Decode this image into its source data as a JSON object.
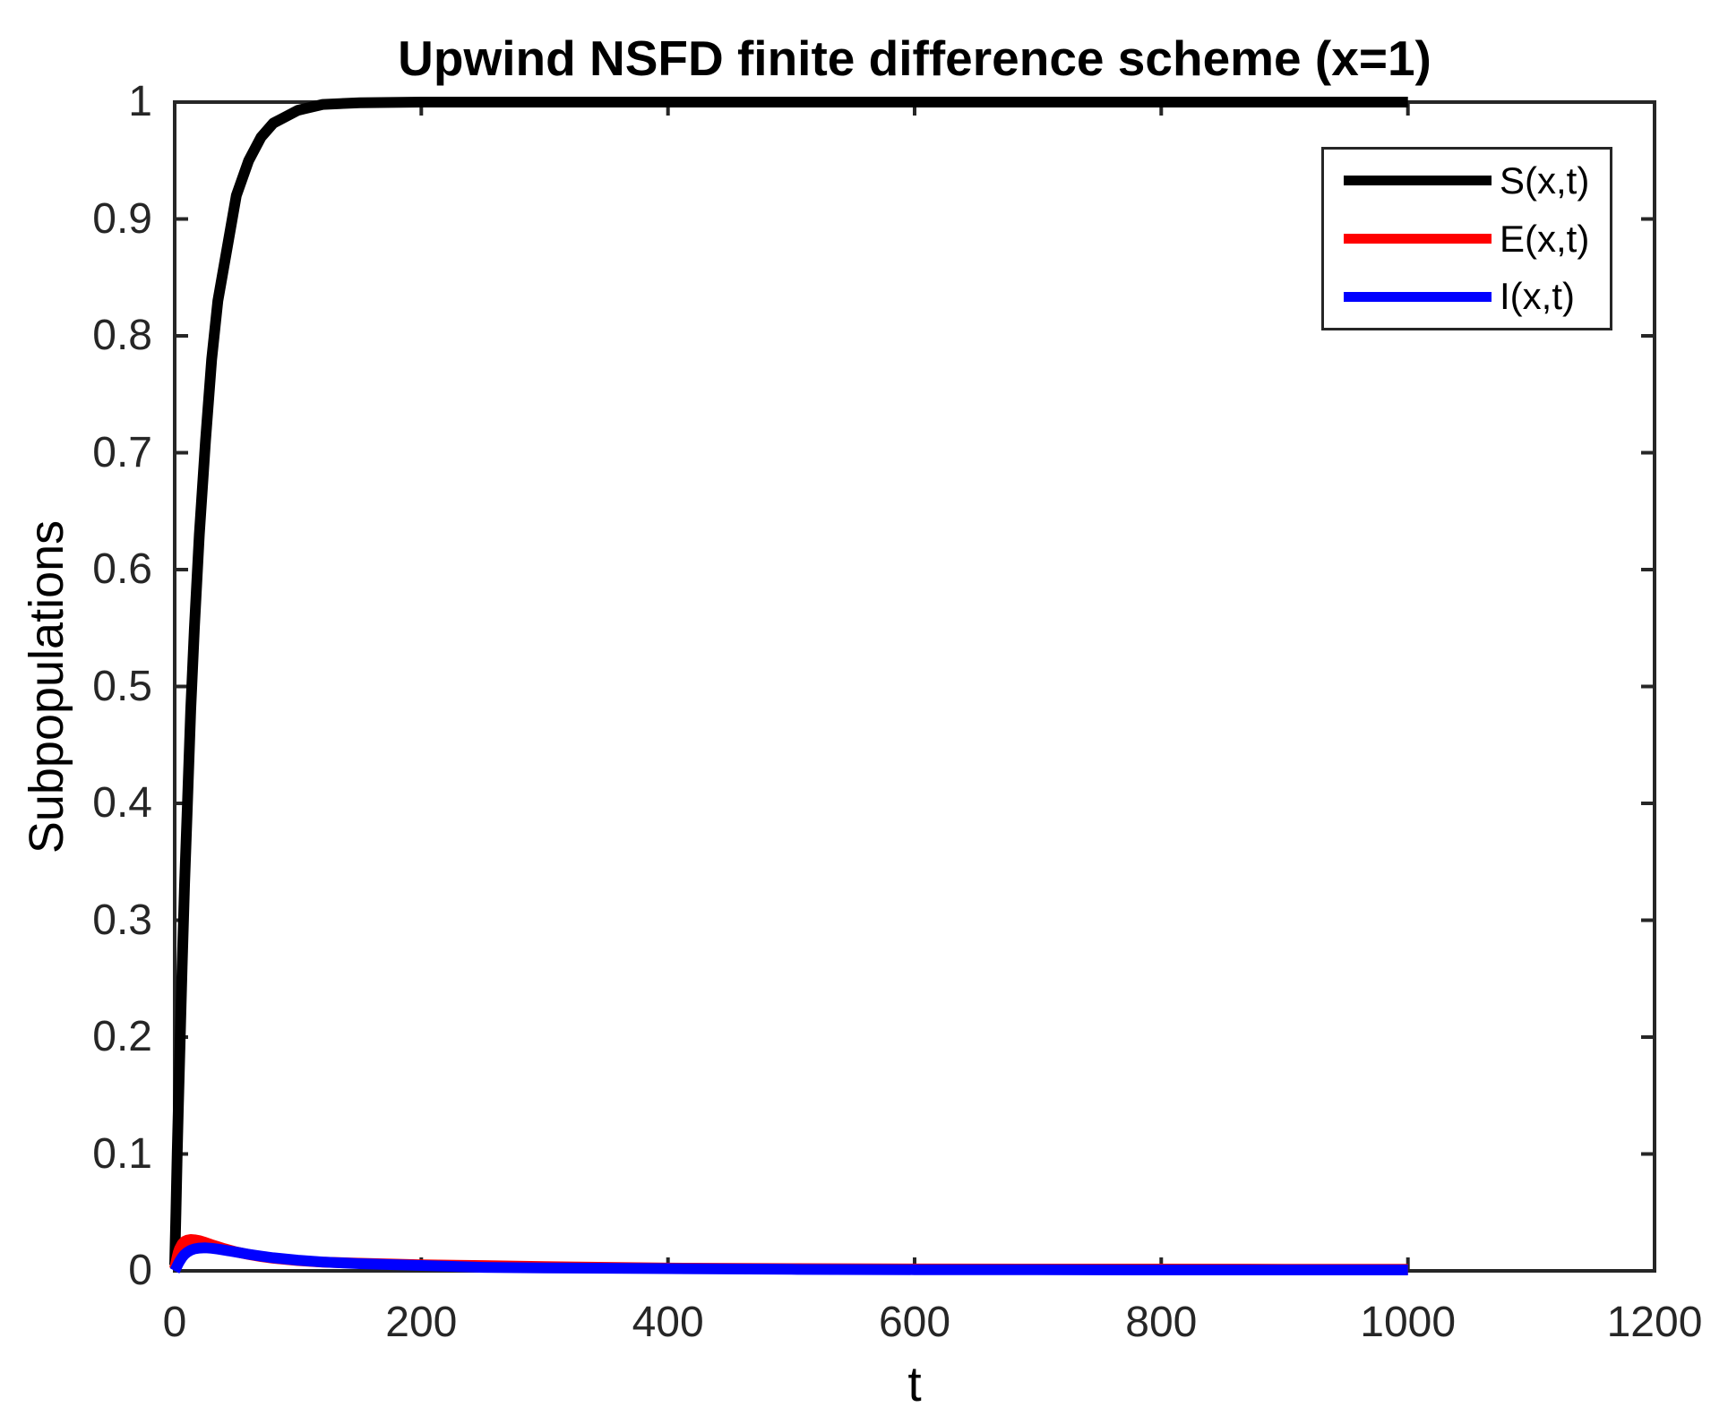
{
  "chart_data": {
    "type": "line",
    "title": "Upwind NSFD finite difference scheme (x=1)",
    "xlabel": "t",
    "ylabel": "Subpopulations",
    "xlim": [
      0,
      1200
    ],
    "ylim": [
      0,
      1
    ],
    "grid": false,
    "background": "#ffffff",
    "axis_color": "#262626",
    "tick_direction": "in",
    "box": true,
    "legend_position": "northeast-inside",
    "xticks": [
      0,
      200,
      400,
      600,
      800,
      1000,
      1200
    ],
    "xtick_labels": [
      "0",
      "200",
      "400",
      "600",
      "800",
      "1000",
      "1200"
    ],
    "yticks": [
      0,
      0.1,
      0.2,
      0.3,
      0.4,
      0.5,
      0.6,
      0.7,
      0.8,
      0.9,
      1
    ],
    "ytick_labels": [
      "0",
      "0.1",
      "0.2",
      "0.3",
      "0.4",
      "0.5",
      "0.6",
      "0.7",
      "0.8",
      "0.9",
      "1"
    ],
    "x": [
      0,
      1,
      2,
      3,
      4,
      6,
      8,
      10,
      13,
      16,
      20,
      25,
      30,
      35,
      40,
      50,
      60,
      70,
      80,
      100,
      120,
      150,
      200,
      250,
      300,
      400,
      500,
      600,
      700,
      800,
      900,
      1000
    ],
    "series": [
      {
        "id": "s",
        "name": "S(x,t)",
        "color": "#000000",
        "linewidth": 12,
        "values": [
          0.005,
          0.05,
          0.1,
          0.14,
          0.18,
          0.26,
          0.33,
          0.39,
          0.48,
          0.55,
          0.63,
          0.71,
          0.78,
          0.83,
          0.86,
          0.92,
          0.95,
          0.97,
          0.982,
          0.993,
          0.998,
          0.9995,
          1,
          1,
          1,
          1,
          1,
          1,
          1,
          1,
          1,
          1
        ]
      },
      {
        "id": "e",
        "name": "E(x,t)",
        "color": "#ff0000",
        "linewidth": 12,
        "values": [
          0.002,
          0.007,
          0.012,
          0.016,
          0.019,
          0.023,
          0.0252,
          0.0262,
          0.0268,
          0.0266,
          0.0258,
          0.0242,
          0.0224,
          0.0207,
          0.019,
          0.0162,
          0.014,
          0.0122,
          0.0108,
          0.0088,
          0.0074,
          0.0065,
          0.0052,
          0.0045,
          0.0036,
          0.0024,
          0.0019,
          0.0016,
          0.0015,
          0.0015,
          0.0014,
          0.0014
        ]
      },
      {
        "id": "i",
        "name": "I(x,t)",
        "color": "#0000ff",
        "linewidth": 12,
        "values": [
          0.0,
          0.002,
          0.0042,
          0.0063,
          0.0082,
          0.0115,
          0.014,
          0.0158,
          0.0177,
          0.0188,
          0.0195,
          0.0197,
          0.0193,
          0.0186,
          0.0178,
          0.016,
          0.0142,
          0.0126,
          0.0112,
          0.0091,
          0.0076,
          0.0061,
          0.0046,
          0.003,
          0.0025,
          0.0019,
          0.0013,
          0.001,
          0.0009,
          0.0008,
          0.0008,
          0.0008
        ]
      }
    ]
  }
}
